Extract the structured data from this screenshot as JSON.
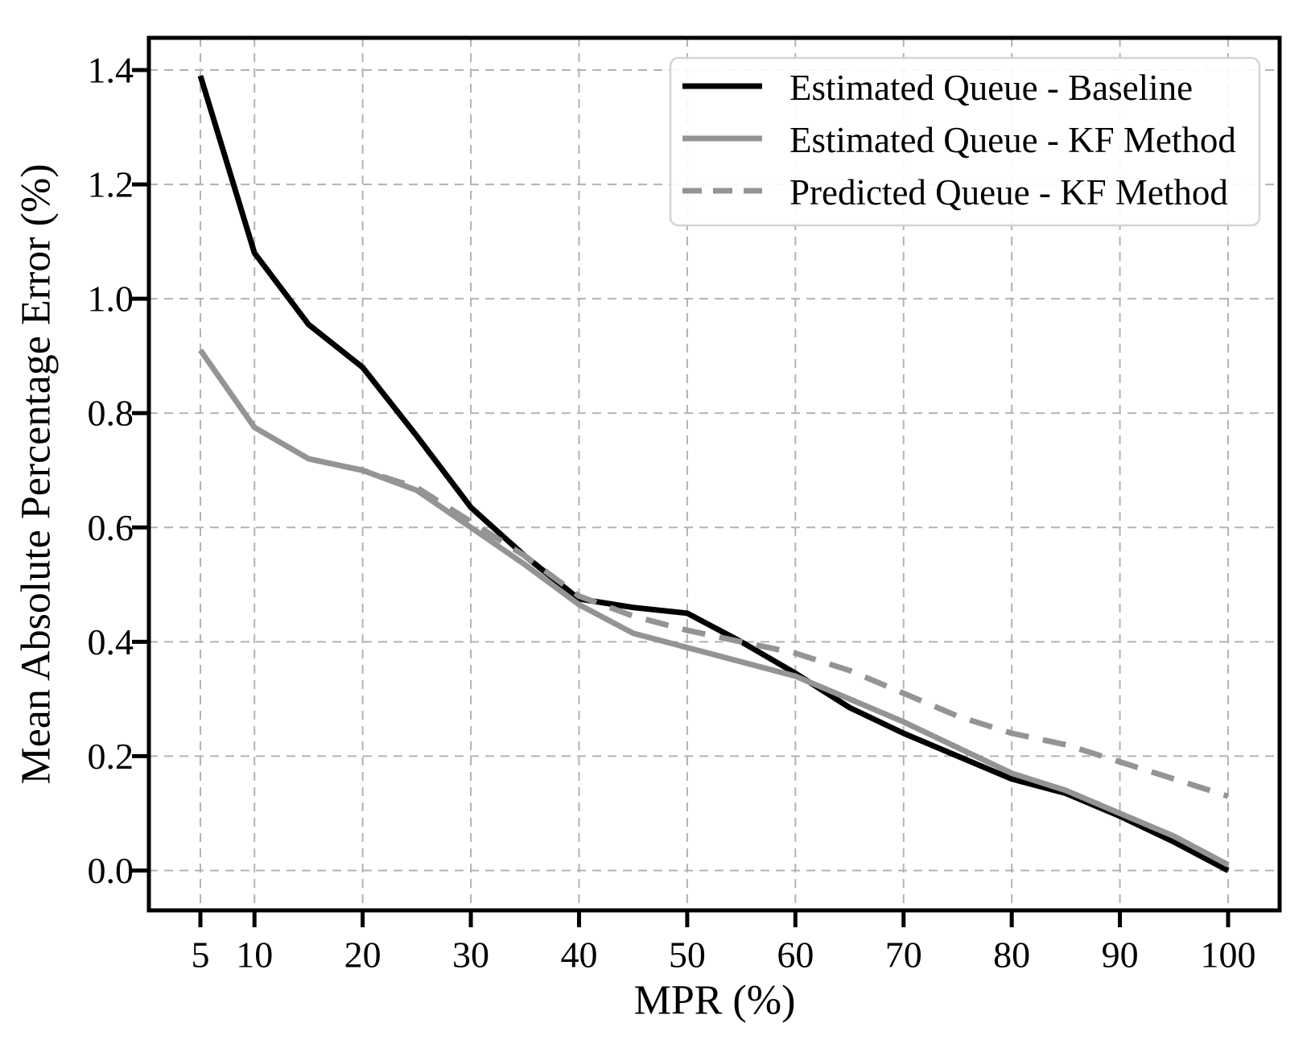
{
  "chart_data": {
    "type": "line",
    "title": "",
    "xlabel": "MPR (%)",
    "ylabel": "Mean Absolute Percentage Error (%)",
    "xlim": [
      5,
      100
    ],
    "ylim": [
      0.0,
      1.4
    ],
    "grid": true,
    "legend_position": "upper right",
    "x_ticks": {
      "values": [
        5,
        10,
        20,
        30,
        40,
        50,
        60,
        70,
        80,
        90,
        100
      ],
      "labels": [
        "5",
        "10",
        "20",
        "30",
        "40",
        "50",
        "60",
        "70",
        "80",
        "90",
        "100"
      ]
    },
    "y_ticks": {
      "values": [
        0.0,
        0.2,
        0.4,
        0.6,
        0.8,
        1.0,
        1.2,
        1.4
      ],
      "labels": [
        "0.0",
        "0.2",
        "0.4",
        "0.6",
        "0.8",
        "1.0",
        "1.2",
        "1.4"
      ]
    },
    "series": [
      {
        "name": "Estimated Queue - Baseline",
        "style": "solid",
        "color": "#000000",
        "x": [
          5,
          10,
          15,
          20,
          25,
          30,
          35,
          40,
          45,
          50,
          55,
          60,
          65,
          70,
          75,
          80,
          85,
          90,
          95,
          100
        ],
        "y": [
          1.39,
          1.08,
          0.955,
          0.88,
          0.76,
          0.635,
          0.55,
          0.475,
          0.46,
          0.45,
          0.4,
          0.345,
          0.285,
          0.24,
          0.2,
          0.16,
          0.135,
          0.095,
          0.05,
          0.0
        ]
      },
      {
        "name": "Estimated Queue - KF Method",
        "style": "solid",
        "color": "#949494",
        "x": [
          5,
          10,
          15,
          20,
          25,
          30,
          35,
          40,
          45,
          50,
          55,
          60,
          65,
          70,
          75,
          80,
          85,
          90,
          95,
          100
        ],
        "y": [
          0.91,
          0.775,
          0.72,
          0.7,
          0.665,
          0.6,
          0.535,
          0.465,
          0.415,
          0.39,
          0.365,
          0.34,
          0.3,
          0.26,
          0.215,
          0.17,
          0.14,
          0.1,
          0.06,
          0.01
        ]
      },
      {
        "name": "Predicted Queue - KF Method",
        "style": "dashed",
        "color": "#949494",
        "x": [
          15,
          20,
          25,
          30,
          35,
          40,
          45,
          50,
          55,
          60,
          65,
          70,
          75,
          80,
          85,
          90,
          95,
          100
        ],
        "y": [
          0.72,
          0.7,
          0.67,
          0.61,
          0.55,
          0.48,
          0.445,
          0.42,
          0.4,
          0.38,
          0.35,
          0.31,
          0.27,
          0.24,
          0.22,
          0.19,
          0.16,
          0.13
        ]
      }
    ]
  },
  "colors": {
    "background": "#ffffff",
    "grid": "#b3b3b3",
    "spine": "#000000",
    "text": "#000000",
    "legend_border": "#d4d4d4",
    "legend_background": "#ffffff"
  }
}
